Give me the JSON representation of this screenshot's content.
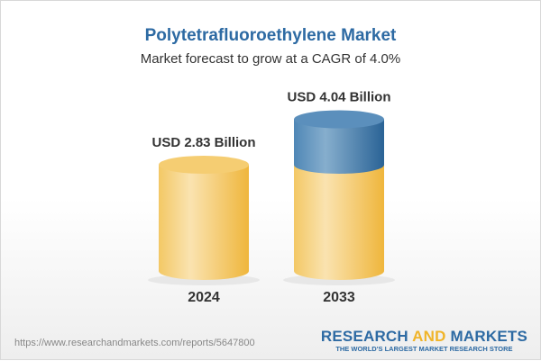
{
  "header": {
    "title": "Polytetrafluoroethylene Market",
    "subtitle": "Market forecast to grow at a CAGR of 4.0%"
  },
  "chart_data": {
    "type": "bar",
    "style": "3d-cylinder",
    "categories": [
      "2024",
      "2033"
    ],
    "values": [
      2.83,
      4.04
    ],
    "data_labels": [
      "USD 2.83 Billion",
      "USD 4.04 Billion"
    ],
    "unit": "USD Billion",
    "grid": false,
    "colors": {
      "base": "#f2c25a",
      "growth": "#3f78a8"
    }
  },
  "footer": {
    "url": "https://www.researchandmarkets.com/reports/5647800",
    "logo": {
      "part1": "RESEARCH ",
      "part2": "AND",
      "part3": " MARKETS",
      "tagline": "THE WORLD'S LARGEST MARKET RESEARCH STORE"
    }
  }
}
